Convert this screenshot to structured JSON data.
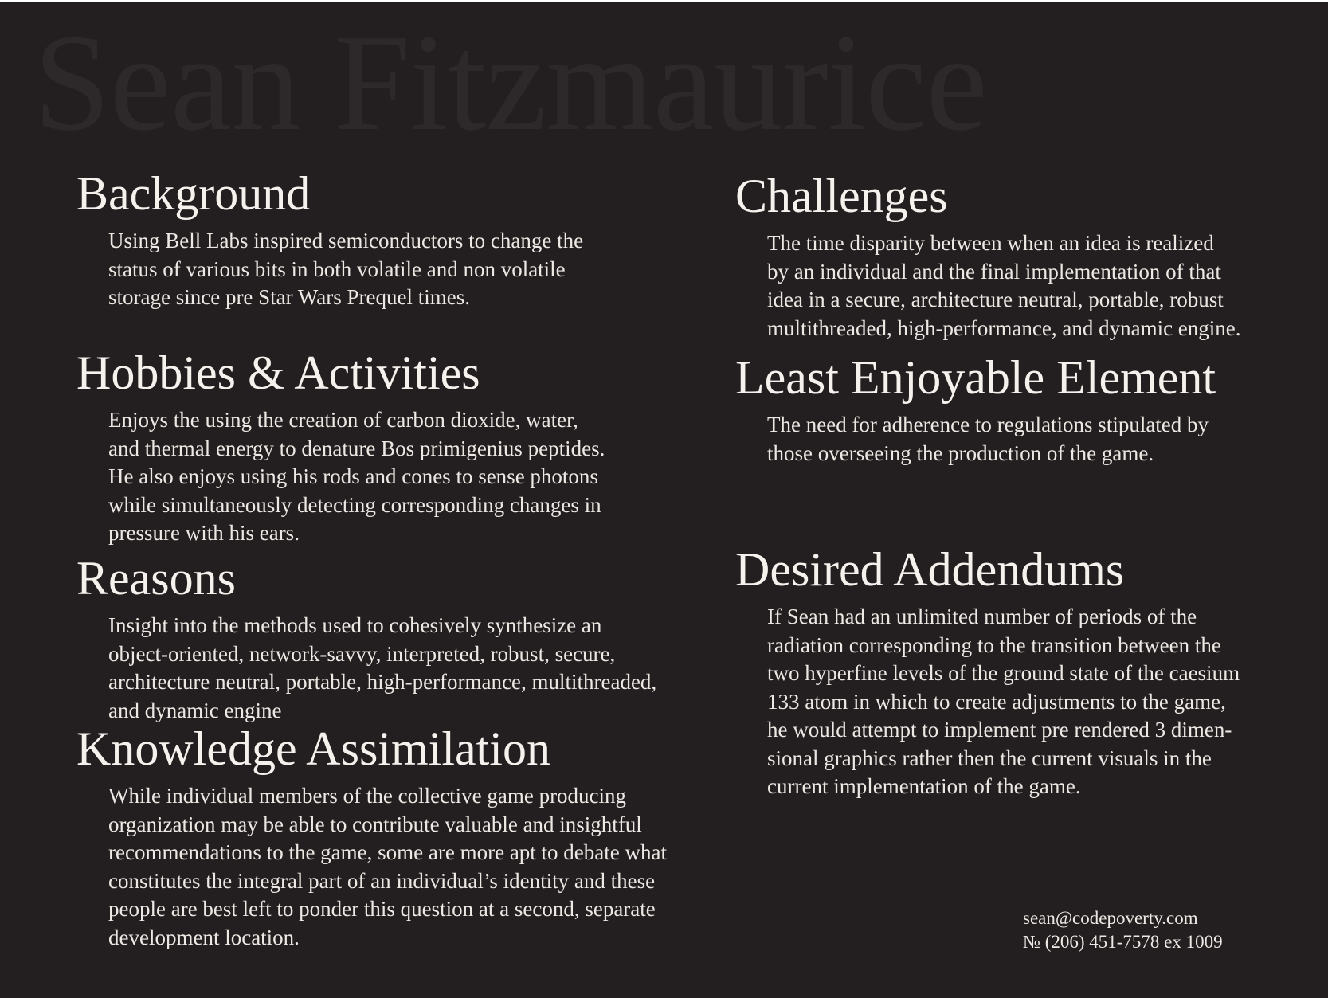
{
  "watermark_name": "Sean Fitzmaurice",
  "sections": {
    "background": {
      "title": "Background",
      "body": "Using Bell Labs inspired semiconductors to change the\nstatus of various bits in both volatile and non volatile\nstorage since pre Star Wars Prequel times."
    },
    "hobbies": {
      "title": "Hobbies & Activities",
      "body": "Enjoys the using the creation of carbon dioxide, water,\nand thermal energy to denature Bos primigenius peptides.\nHe also enjoys using his rods and cones to sense photons\nwhile simultaneously detecting corresponding changes in\npressure with his ears."
    },
    "reasons": {
      "title": "Reasons",
      "body": "Insight into the methods used to cohesively synthesize an\nobject-oriented, network-savvy, interpreted, robust, secure,\narchitecture neutral, portable, high-performance, multithreaded,\nand dynamic engine"
    },
    "knowledge": {
      "title": "Knowledge Assimilation",
      "body": "While individual members of the collective game producing\norganization may be able to contribute valuable and insightful\nrecommendations to the game, some are more apt to debate what\nconstitutes the integral part of an individual’s identity and these\npeople are best left to ponder this question at a second, separate\ndevelopment location."
    },
    "challenges": {
      "title": "Challenges",
      "body": "The time disparity between when an idea is realized\nby an individual and the final implementation of that\nidea in a secure, architecture neutral, portable, robust\nmultithreaded, high-performance, and dynamic engine."
    },
    "least_enjoyable": {
      "title": "Least Enjoyable Element",
      "body": "The need for adherence to regulations stipulated by\nthose overseeing the production of the game."
    },
    "addendums": {
      "title": "Desired Addendums",
      "body": "If Sean had an unlimited number of periods of the\nradiation corresponding to the transition between the\ntwo hyperfine levels of the ground state of the caesium\n133 atom in which to create adjustments to the game,\nhe would attempt to implement pre rendered 3 dimen-\nsional graphics rather then the current visuals in the\ncurrent implementation of the game."
    }
  },
  "contact": {
    "email": "sean@codepoverty.com",
    "phone": "№ (206) 451-7578 ex 1009"
  },
  "colors": {
    "background": "#231f20",
    "text": "#f2efea",
    "watermark": "#2d292a"
  }
}
